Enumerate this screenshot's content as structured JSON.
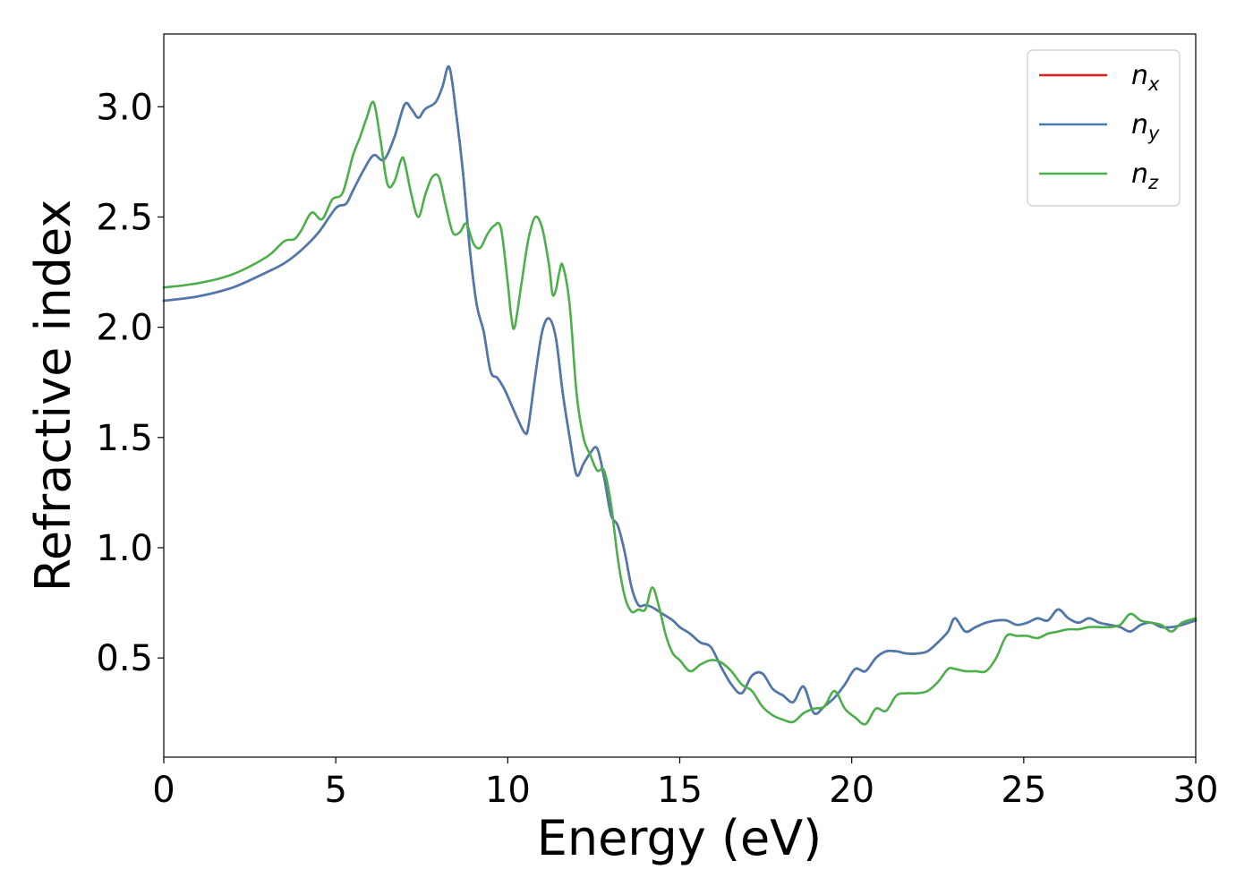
{
  "chart_data": {
    "type": "line",
    "xlabel": "Energy (eV)",
    "ylabel": "Refractive index",
    "xlim": [
      0,
      30
    ],
    "ylim": [
      0.05,
      3.33
    ],
    "xticks": [
      0,
      5,
      10,
      15,
      20,
      25,
      30
    ],
    "xtick_labels": [
      "0",
      "5",
      "10",
      "15",
      "20",
      "25",
      "30"
    ],
    "yticks": [
      0.5,
      1.0,
      1.5,
      2.0,
      2.5,
      3.0
    ],
    "ytick_labels": [
      "0.5",
      "1.0",
      "1.5",
      "2.0",
      "2.5",
      "3.0"
    ],
    "grid": false,
    "legend_position": "top-right",
    "series": [
      {
        "name": "n",
        "subscript": "x",
        "color": "#e41a1c",
        "x": [
          0,
          1,
          2,
          3,
          3.5,
          4,
          4.5,
          5,
          5.3,
          5.5,
          5.8,
          6.1,
          6.4,
          6.7,
          7.0,
          7.2,
          7.4,
          7.6,
          7.9,
          8.1,
          8.3,
          8.5,
          8.7,
          8.9,
          9.1,
          9.3,
          9.5,
          9.7,
          9.9,
          10.1,
          10.3,
          10.5,
          10.6,
          10.8,
          11.0,
          11.2,
          11.4,
          11.6,
          11.8,
          12.0,
          12.2,
          12.4,
          12.6,
          12.8,
          13.0,
          13.2,
          13.4,
          13.6,
          13.8,
          14.0,
          14.2,
          14.5,
          14.8,
          15.0,
          15.3,
          15.6,
          15.9,
          16.2,
          16.5,
          16.8,
          17.1,
          17.4,
          17.7,
          18.0,
          18.3,
          18.6,
          18.9,
          19.2,
          19.5,
          19.8,
          20.1,
          20.4,
          20.7,
          21.0,
          21.3,
          21.6,
          21.9,
          22.2,
          22.5,
          22.8,
          23.0,
          23.3,
          23.6,
          23.9,
          24.2,
          24.5,
          24.8,
          25.1,
          25.4,
          25.7,
          26.0,
          26.3,
          26.6,
          26.9,
          27.2,
          27.5,
          27.8,
          28.1,
          28.4,
          28.7,
          29.0,
          29.3,
          29.6,
          30.0
        ],
        "y": [
          2.12,
          2.14,
          2.18,
          2.25,
          2.29,
          2.35,
          2.43,
          2.54,
          2.56,
          2.62,
          2.71,
          2.78,
          2.76,
          2.86,
          3.01,
          2.99,
          2.95,
          2.99,
          3.02,
          3.09,
          3.18,
          2.97,
          2.7,
          2.35,
          2.1,
          1.98,
          1.8,
          1.77,
          1.72,
          1.65,
          1.58,
          1.52,
          1.55,
          1.78,
          1.98,
          2.04,
          1.95,
          1.7,
          1.5,
          1.33,
          1.38,
          1.43,
          1.45,
          1.32,
          1.15,
          1.1,
          0.98,
          0.82,
          0.74,
          0.74,
          0.73,
          0.7,
          0.67,
          0.64,
          0.61,
          0.57,
          0.55,
          0.46,
          0.38,
          0.34,
          0.42,
          0.43,
          0.36,
          0.33,
          0.3,
          0.37,
          0.25,
          0.28,
          0.32,
          0.38,
          0.45,
          0.44,
          0.5,
          0.53,
          0.53,
          0.52,
          0.52,
          0.53,
          0.57,
          0.62,
          0.68,
          0.62,
          0.64,
          0.66,
          0.67,
          0.67,
          0.65,
          0.66,
          0.68,
          0.67,
          0.72,
          0.68,
          0.66,
          0.68,
          0.66,
          0.65,
          0.64,
          0.62,
          0.65,
          0.66,
          0.64,
          0.64,
          0.65,
          0.67
        ]
      },
      {
        "name": "n",
        "subscript": "y",
        "color": "#4a7bb0",
        "x": [
          0,
          1,
          2,
          3,
          3.5,
          4,
          4.5,
          5,
          5.3,
          5.5,
          5.8,
          6.1,
          6.4,
          6.7,
          7.0,
          7.2,
          7.4,
          7.6,
          7.9,
          8.1,
          8.3,
          8.5,
          8.7,
          8.9,
          9.1,
          9.3,
          9.5,
          9.7,
          9.9,
          10.1,
          10.3,
          10.5,
          10.6,
          10.8,
          11.0,
          11.2,
          11.4,
          11.6,
          11.8,
          12.0,
          12.2,
          12.4,
          12.6,
          12.8,
          13.0,
          13.2,
          13.4,
          13.6,
          13.8,
          14.0,
          14.2,
          14.5,
          14.8,
          15.0,
          15.3,
          15.6,
          15.9,
          16.2,
          16.5,
          16.8,
          17.1,
          17.4,
          17.7,
          18.0,
          18.3,
          18.6,
          18.9,
          19.2,
          19.5,
          19.8,
          20.1,
          20.4,
          20.7,
          21.0,
          21.3,
          21.6,
          21.9,
          22.2,
          22.5,
          22.8,
          23.0,
          23.3,
          23.6,
          23.9,
          24.2,
          24.5,
          24.8,
          25.1,
          25.4,
          25.7,
          26.0,
          26.3,
          26.6,
          26.9,
          27.2,
          27.5,
          27.8,
          28.1,
          28.4,
          28.7,
          29.0,
          29.3,
          29.6,
          30.0
        ],
        "y": [
          2.12,
          2.14,
          2.18,
          2.25,
          2.29,
          2.35,
          2.43,
          2.54,
          2.56,
          2.62,
          2.71,
          2.78,
          2.76,
          2.86,
          3.01,
          2.99,
          2.95,
          2.99,
          3.02,
          3.09,
          3.18,
          2.97,
          2.7,
          2.35,
          2.1,
          1.98,
          1.8,
          1.77,
          1.72,
          1.65,
          1.58,
          1.52,
          1.55,
          1.78,
          1.98,
          2.04,
          1.95,
          1.7,
          1.5,
          1.33,
          1.38,
          1.43,
          1.45,
          1.32,
          1.15,
          1.1,
          0.98,
          0.82,
          0.74,
          0.74,
          0.73,
          0.7,
          0.67,
          0.64,
          0.61,
          0.57,
          0.55,
          0.46,
          0.38,
          0.34,
          0.42,
          0.43,
          0.36,
          0.33,
          0.3,
          0.37,
          0.25,
          0.28,
          0.32,
          0.38,
          0.45,
          0.44,
          0.5,
          0.53,
          0.53,
          0.52,
          0.52,
          0.53,
          0.57,
          0.62,
          0.68,
          0.62,
          0.64,
          0.66,
          0.67,
          0.67,
          0.65,
          0.66,
          0.68,
          0.67,
          0.72,
          0.68,
          0.66,
          0.68,
          0.66,
          0.65,
          0.64,
          0.62,
          0.65,
          0.66,
          0.64,
          0.64,
          0.65,
          0.67
        ]
      },
      {
        "name": "n",
        "subscript": "z",
        "color": "#4daf4a",
        "x": [
          0,
          1,
          2,
          3,
          3.5,
          3.8,
          4.0,
          4.3,
          4.6,
          4.9,
          5.2,
          5.5,
          5.7,
          5.9,
          6.1,
          6.3,
          6.5,
          6.7,
          6.9,
          7.0,
          7.2,
          7.4,
          7.6,
          7.8,
          8.0,
          8.2,
          8.4,
          8.6,
          8.8,
          9.0,
          9.2,
          9.4,
          9.6,
          9.8,
          10.0,
          10.1,
          10.2,
          10.4,
          10.6,
          10.8,
          11.0,
          11.2,
          11.3,
          11.4,
          11.5,
          11.6,
          11.8,
          12.0,
          12.2,
          12.4,
          12.6,
          12.8,
          13.0,
          13.2,
          13.4,
          13.6,
          13.8,
          14.0,
          14.2,
          14.4,
          14.6,
          14.8,
          15.0,
          15.3,
          15.6,
          15.9,
          16.2,
          16.5,
          16.8,
          17.1,
          17.4,
          17.7,
          18.0,
          18.3,
          18.6,
          18.9,
          19.2,
          19.5,
          19.8,
          20.1,
          20.4,
          20.7,
          21.0,
          21.3,
          21.6,
          21.9,
          22.2,
          22.5,
          22.8,
          23.0,
          23.3,
          23.6,
          23.9,
          24.2,
          24.5,
          24.8,
          25.1,
          25.4,
          25.7,
          26.0,
          26.3,
          26.6,
          26.9,
          27.2,
          27.5,
          27.8,
          28.1,
          28.4,
          28.7,
          29.0,
          29.3,
          29.6,
          30.0
        ],
        "y": [
          2.18,
          2.2,
          2.24,
          2.32,
          2.39,
          2.4,
          2.44,
          2.52,
          2.49,
          2.58,
          2.61,
          2.78,
          2.86,
          2.95,
          3.02,
          2.85,
          2.65,
          2.66,
          2.76,
          2.75,
          2.6,
          2.5,
          2.6,
          2.68,
          2.68,
          2.55,
          2.43,
          2.43,
          2.47,
          2.38,
          2.36,
          2.42,
          2.46,
          2.45,
          2.2,
          2.05,
          2.0,
          2.2,
          2.4,
          2.5,
          2.45,
          2.28,
          2.15,
          2.17,
          2.25,
          2.28,
          2.1,
          1.7,
          1.5,
          1.42,
          1.35,
          1.35,
          1.2,
          0.95,
          0.78,
          0.71,
          0.72,
          0.72,
          0.82,
          0.73,
          0.6,
          0.52,
          0.49,
          0.44,
          0.47,
          0.49,
          0.48,
          0.44,
          0.38,
          0.35,
          0.28,
          0.24,
          0.22,
          0.21,
          0.25,
          0.27,
          0.28,
          0.35,
          0.27,
          0.23,
          0.2,
          0.27,
          0.26,
          0.33,
          0.34,
          0.34,
          0.35,
          0.39,
          0.45,
          0.45,
          0.44,
          0.44,
          0.44,
          0.5,
          0.6,
          0.6,
          0.6,
          0.59,
          0.61,
          0.62,
          0.63,
          0.63,
          0.64,
          0.64,
          0.64,
          0.65,
          0.7,
          0.67,
          0.66,
          0.65,
          0.62,
          0.66,
          0.68
        ]
      }
    ]
  }
}
